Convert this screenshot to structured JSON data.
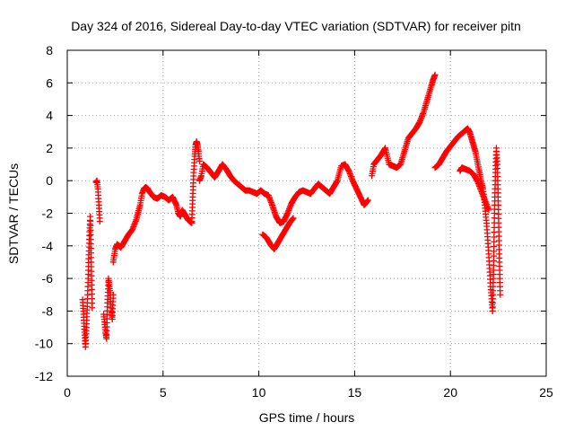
{
  "chart_data": {
    "type": "scatter",
    "title": "Day 324 of 2016, Sidereal Day-to-day VTEC variation (SDTVAR) for receiver pitn",
    "xlabel": "GPS time / hours",
    "ylabel": "SDTVAR / TECUs",
    "xlim": [
      0,
      25
    ],
    "ylim": [
      -12,
      8
    ],
    "xticks": [
      0,
      5,
      10,
      15,
      20,
      25
    ],
    "yticks": [
      -12,
      -10,
      -8,
      -6,
      -4,
      -2,
      0,
      2,
      4,
      6,
      8
    ],
    "grid": true,
    "marker": "+",
    "series_color": "#ff0000",
    "segments": [
      {
        "x": [
          0.8,
          0.85,
          0.9,
          0.95,
          1.0,
          1.05,
          1.1,
          1.15,
          1.2,
          1.25,
          1.3
        ],
        "y": [
          -7.3,
          -8.2,
          -9.3,
          -10.2,
          -9.0,
          -7.5,
          -5.5,
          -3.6,
          -2.2,
          -5.0,
          -7.8
        ]
      },
      {
        "x": [
          1.5,
          1.55,
          1.6,
          1.65,
          1.7
        ],
        "y": [
          -0.1,
          0.0,
          -0.5,
          -1.5,
          -2.5
        ]
      },
      {
        "x": [
          1.9,
          2.0,
          2.05,
          2.1,
          2.15,
          2.2,
          2.25,
          2.3,
          2.35,
          2.4
        ],
        "y": [
          -8.2,
          -9.3,
          -9.7,
          -7.5,
          -6.0,
          -6.5,
          -7.0,
          -8.0,
          -8.5,
          -7.0
        ]
      },
      {
        "x": [
          2.4,
          2.5,
          2.6,
          2.8,
          3.0,
          3.2,
          3.4,
          3.6,
          3.8,
          3.9,
          4.0,
          4.1,
          4.2,
          4.3,
          4.5,
          4.7,
          4.9,
          5.1,
          5.3,
          5.5,
          5.7,
          5.8,
          5.9,
          6.0,
          6.1,
          6.3,
          6.5
        ],
        "y": [
          -5.0,
          -4.2,
          -3.9,
          -4.1,
          -3.7,
          -3.3,
          -3.0,
          -2.4,
          -1.5,
          -0.8,
          -0.5,
          -0.4,
          -0.5,
          -0.7,
          -1.0,
          -1.1,
          -0.9,
          -1.0,
          -1.2,
          -1.0,
          -1.5,
          -2.0,
          -2.2,
          -1.8,
          -2.0,
          -2.4,
          -2.6
        ]
      },
      {
        "x": [
          6.5,
          6.55,
          6.6,
          6.65,
          6.7,
          6.75,
          6.8,
          6.85,
          6.9
        ],
        "y": [
          -2.5,
          -1.0,
          0.5,
          1.5,
          2.2,
          2.4,
          2.2,
          1.8,
          1.2
        ]
      },
      {
        "x": [
          6.9,
          7.0,
          7.1,
          7.3,
          7.5,
          7.7,
          7.9,
          8.1,
          8.3,
          8.5,
          8.7,
          8.9,
          9.1,
          9.3,
          9.5,
          9.7,
          9.9,
          10.1,
          10.3,
          10.5,
          10.7,
          10.9,
          11.1,
          11.3,
          11.5,
          11.7,
          11.9,
          12.1,
          12.3,
          12.5,
          12.7
        ],
        "y": [
          0.0,
          0.3,
          1.0,
          0.8,
          0.5,
          0.2,
          0.6,
          1.0,
          0.7,
          0.3,
          0.0,
          -0.2,
          -0.4,
          -0.6,
          -0.6,
          -0.7,
          -0.8,
          -0.6,
          -0.8,
          -0.9,
          -1.5,
          -2.2,
          -2.6,
          -2.5,
          -2.0,
          -1.4,
          -1.0,
          -0.7,
          -0.6,
          -0.7,
          -0.8
        ]
      },
      {
        "x": [
          10.2,
          10.4,
          10.6,
          10.8,
          11.0,
          11.2,
          11.4,
          11.6,
          11.8
        ],
        "y": [
          -3.3,
          -3.5,
          -3.9,
          -4.2,
          -3.8,
          -3.4,
          -3.0,
          -2.6,
          -2.3
        ]
      },
      {
        "x": [
          12.7,
          12.9,
          13.1,
          13.3,
          13.5,
          13.7,
          13.9,
          14.1,
          14.3,
          14.5,
          14.7,
          14.9,
          15.1,
          15.3,
          15.5,
          15.7
        ],
        "y": [
          -0.8,
          -0.5,
          -0.2,
          -0.4,
          -0.6,
          -0.8,
          -0.4,
          0.0,
          0.9,
          1.0,
          0.6,
          0.0,
          -0.5,
          -1.0,
          -1.5,
          -1.2
        ]
      },
      {
        "x": [
          15.9,
          16.0,
          16.2,
          16.4,
          16.6,
          16.8,
          17.0,
          17.2,
          17.4,
          17.6,
          17.8,
          18.0,
          18.2,
          18.4,
          18.6,
          18.8,
          19.0,
          19.1,
          19.2
        ],
        "y": [
          0.3,
          1.0,
          1.3,
          1.6,
          2.0,
          1.0,
          0.9,
          0.8,
          1.0,
          1.8,
          2.6,
          2.9,
          3.2,
          3.6,
          4.2,
          5.0,
          5.8,
          6.2,
          6.5
        ]
      },
      {
        "x": [
          19.2,
          19.4,
          19.6,
          19.8,
          20.0,
          20.2,
          20.4,
          20.6,
          20.8,
          20.9,
          21.0,
          21.1,
          21.2,
          21.3,
          21.4,
          21.5,
          21.6,
          21.7,
          21.8,
          21.9,
          22.0,
          22.1,
          22.2
        ],
        "y": [
          0.8,
          1.0,
          1.4,
          1.8,
          2.1,
          2.4,
          2.7,
          2.9,
          3.1,
          3.2,
          3.0,
          2.6,
          2.2,
          1.8,
          1.2,
          0.6,
          0.0,
          -0.5,
          -1.5,
          -2.8,
          -4.5,
          -6.5,
          -8.0
        ]
      },
      {
        "x": [
          20.5,
          20.6,
          20.8,
          21.0,
          21.2,
          21.4,
          21.6,
          21.8,
          22.0
        ],
        "y": [
          0.6,
          0.8,
          0.7,
          0.6,
          0.4,
          0.0,
          -0.6,
          -1.2,
          -1.8
        ]
      },
      {
        "x": [
          22.2,
          22.25,
          22.3,
          22.35,
          22.4,
          22.45,
          22.5,
          22.55,
          22.6
        ],
        "y": [
          -8.0,
          -5.5,
          -2.0,
          0.5,
          2.0,
          1.0,
          -1.5,
          -4.5,
          -7.0
        ]
      }
    ]
  }
}
